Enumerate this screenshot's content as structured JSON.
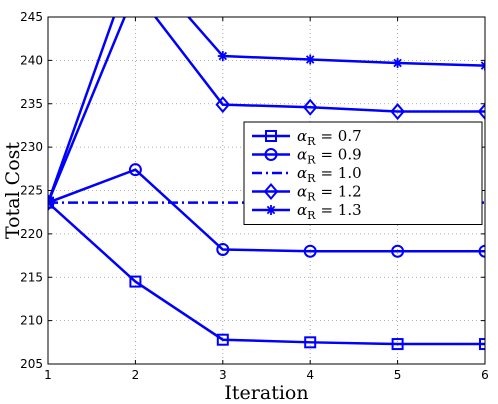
{
  "chart_data": {
    "type": "line",
    "xlabel": "Iteration",
    "ylabel": "Total Cost",
    "xlim": [
      1,
      6
    ],
    "ylim": [
      205,
      245
    ],
    "xticks": [
      1,
      2,
      3,
      4,
      5,
      6
    ],
    "yticks": [
      205,
      210,
      215,
      220,
      225,
      230,
      235,
      240,
      245
    ],
    "grid": true,
    "legend_position": "middle-right",
    "color": "#0000ff",
    "x": [
      1,
      2,
      3,
      4,
      5,
      6
    ],
    "series": [
      {
        "name": "α_R = 0.7",
        "legend_base": "α",
        "legend_sub": "R",
        "legend_value": "0.7",
        "marker": "square",
        "linestyle": "solid",
        "values": [
          223.6,
          214.5,
          207.8,
          207.5,
          207.3,
          207.3
        ]
      },
      {
        "name": "α_R = 0.9",
        "legend_base": "α",
        "legend_sub": "R",
        "legend_value": "0.9",
        "marker": "circle",
        "linestyle": "solid",
        "values": [
          223.6,
          227.4,
          218.2,
          218.0,
          218.0,
          218.0
        ]
      },
      {
        "name": "α_R = 1.0",
        "legend_base": "α",
        "legend_sub": "R",
        "legend_value": "1.0",
        "marker": "none",
        "linestyle": "dashdot",
        "values": [
          223.6,
          223.6,
          223.6,
          223.6,
          223.6,
          223.6
        ]
      },
      {
        "name": "α_R = 1.2",
        "legend_base": "α",
        "legend_sub": "R",
        "legend_value": "1.2",
        "marker": "diamond",
        "linestyle": "solid",
        "values": [
          223.6,
          248.0,
          234.9,
          234.6,
          234.1,
          234.1
        ]
      },
      {
        "name": "α_R = 1.3",
        "legend_base": "α",
        "legend_sub": "R",
        "legend_value": "1.3",
        "marker": "star",
        "linestyle": "solid",
        "values": [
          223.6,
          252.0,
          240.5,
          240.1,
          239.7,
          239.4
        ]
      }
    ]
  }
}
